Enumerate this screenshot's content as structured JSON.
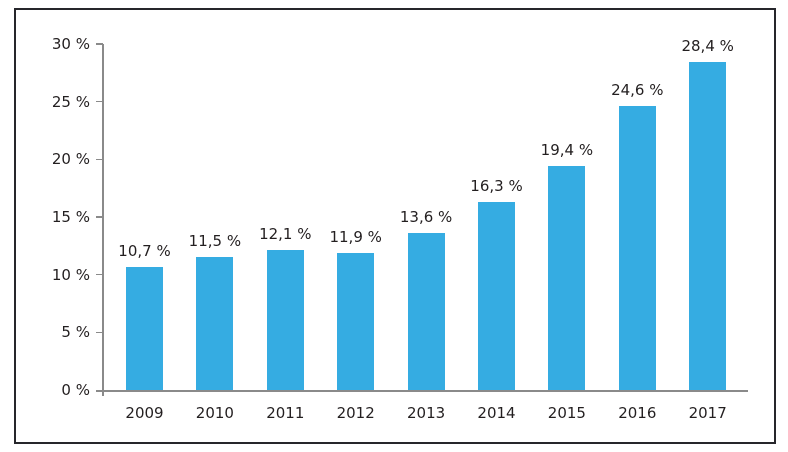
{
  "chart_data": {
    "type": "bar",
    "categories": [
      "2009",
      "2010",
      "2011",
      "2012",
      "2013",
      "2014",
      "2015",
      "2016",
      "2017"
    ],
    "values": [
      10.7,
      11.5,
      12.1,
      11.9,
      13.6,
      16.3,
      19.4,
      24.6,
      28.4
    ],
    "bar_labels": [
      "10,7 %",
      "11,5 %",
      "12,1 %",
      "11,9 %",
      "13,6 %",
      "16,3 %",
      "19,4 %",
      "24,6 %",
      "28,4 %"
    ],
    "y_ticks": [
      0,
      5,
      10,
      15,
      20,
      25,
      30
    ],
    "y_tick_labels": [
      "0 %",
      "5 %",
      "10 %",
      "15 %",
      "20 %",
      "25 %",
      "30 %"
    ],
    "ylim": [
      0,
      30
    ],
    "grid": false,
    "legend": "none",
    "decimal_separator": ",",
    "colors": {
      "bar": "#35ace2",
      "axis": "#8a8a8a",
      "text": "#231f20",
      "frame_border": "#26262b",
      "background": "#ffffff"
    }
  }
}
